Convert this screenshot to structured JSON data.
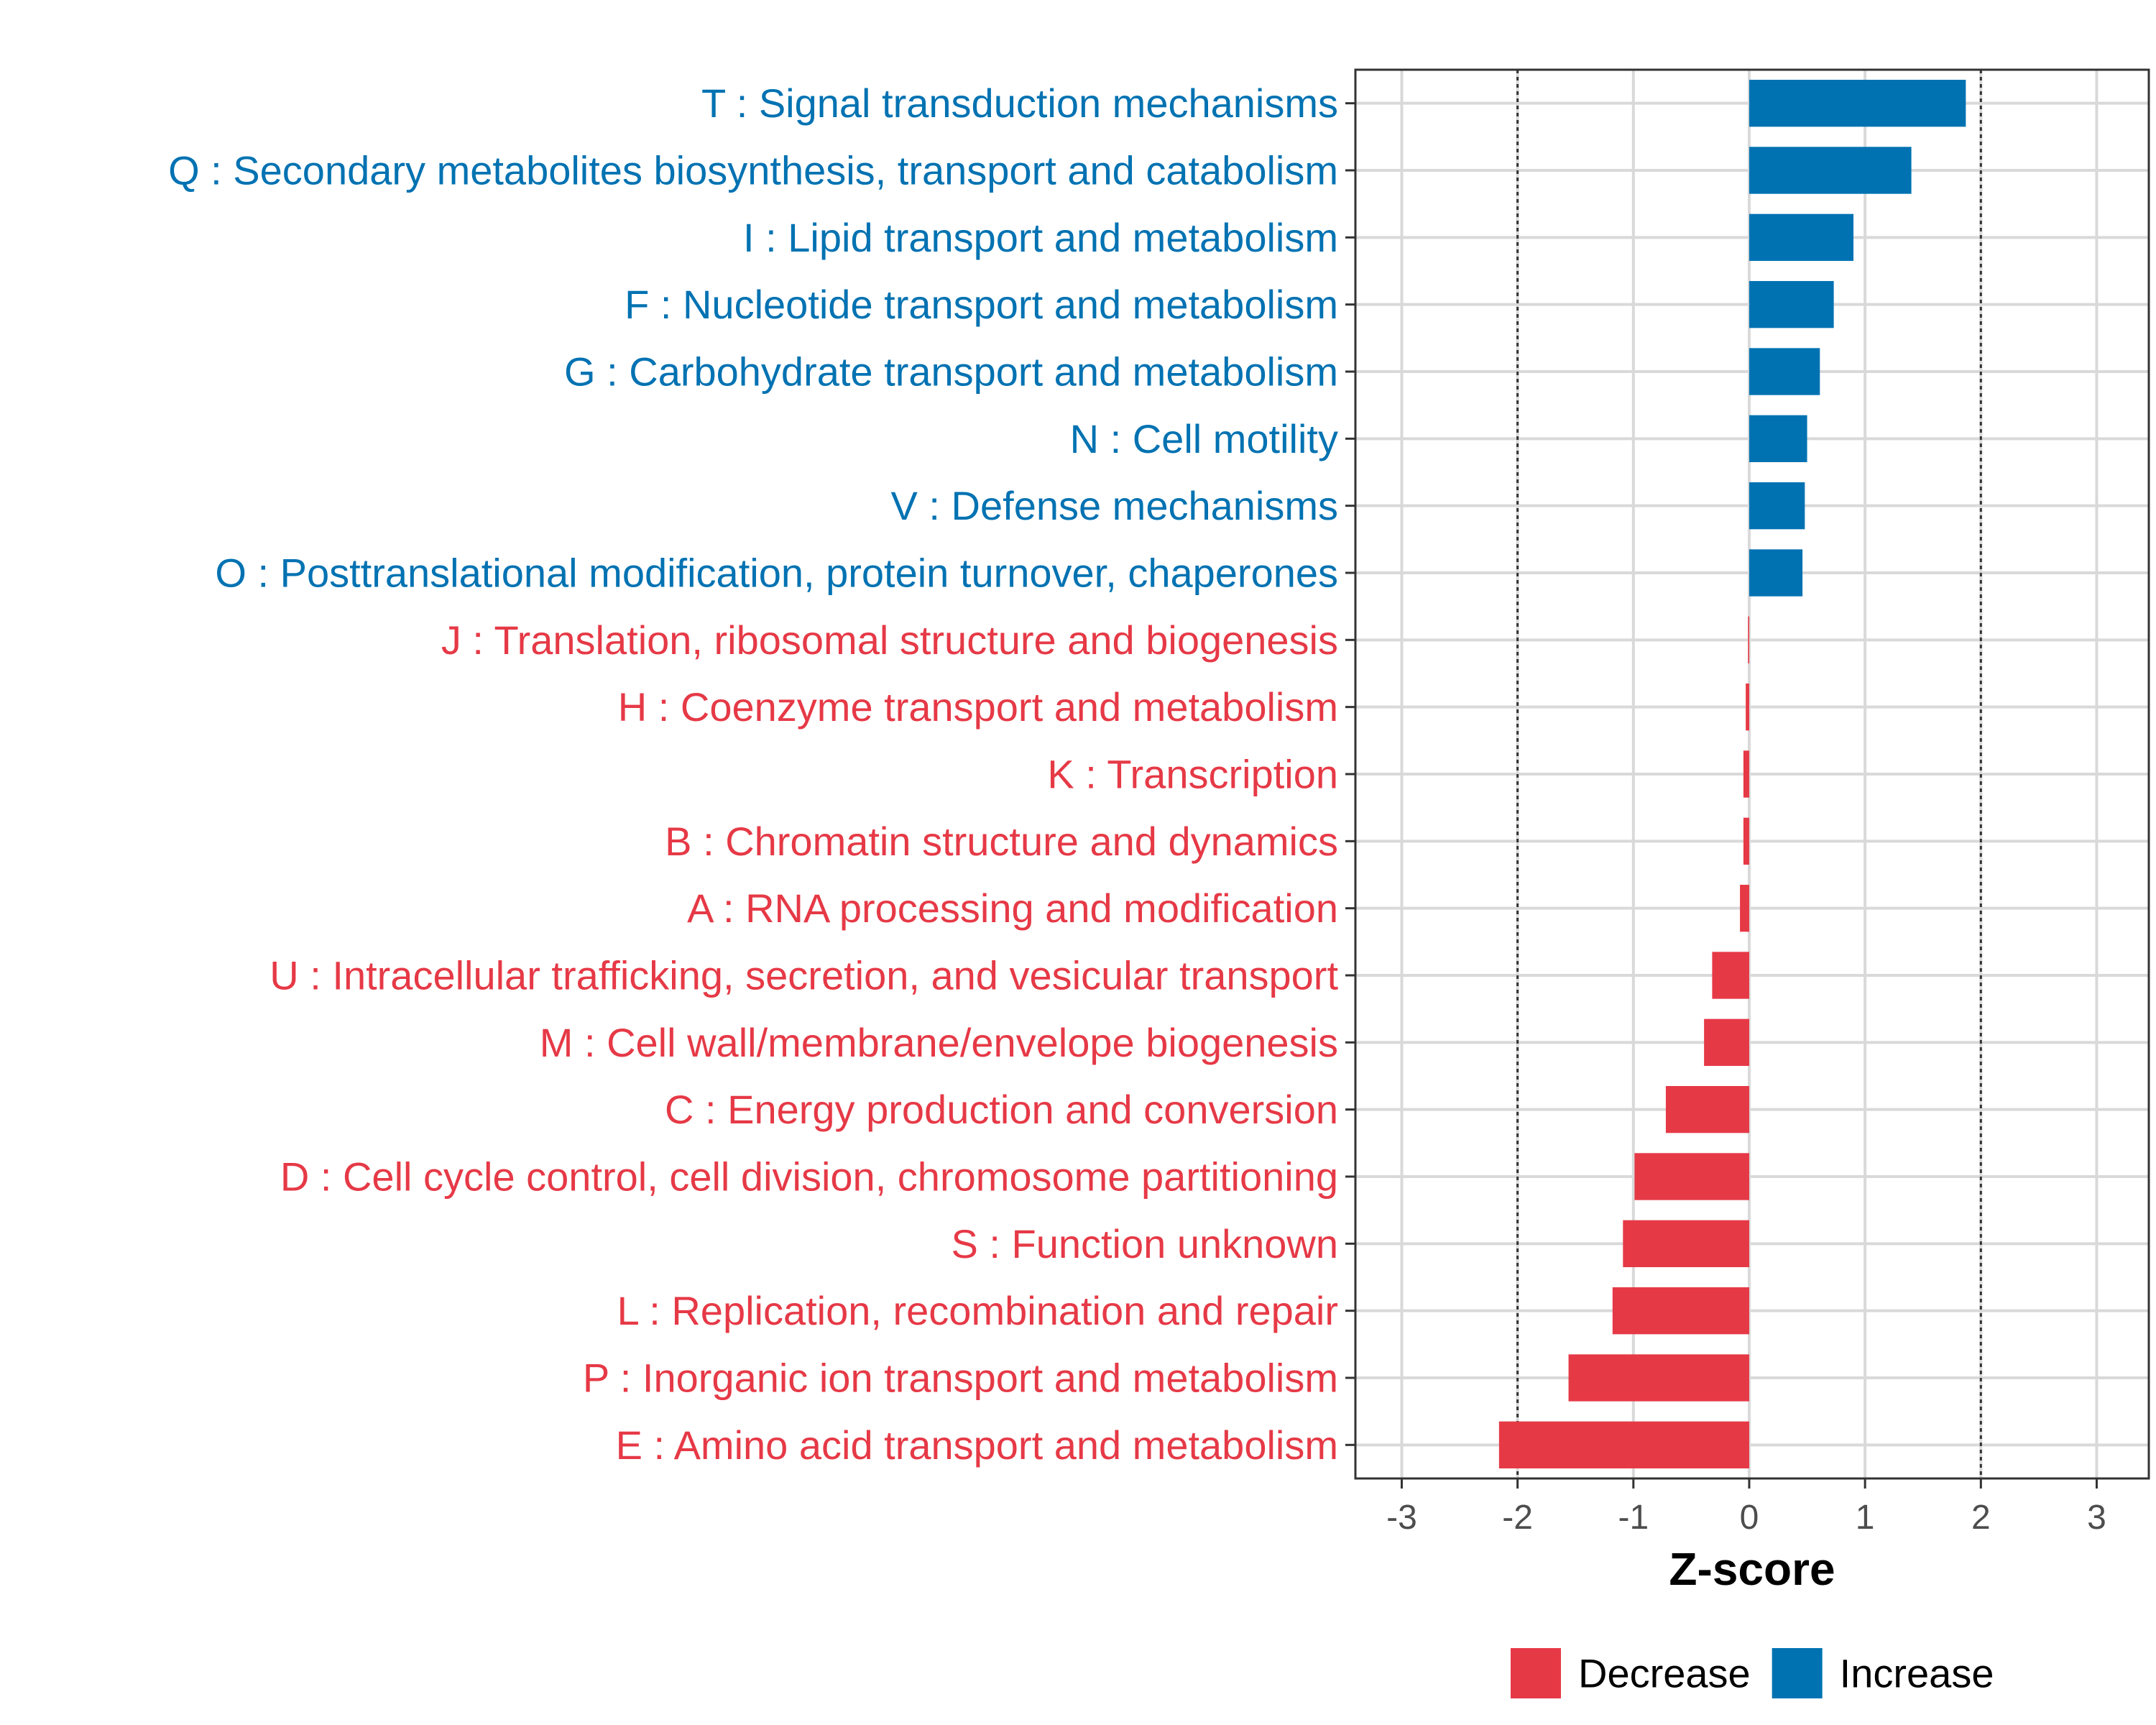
{
  "chart_data": {
    "type": "bar",
    "orientation": "horizontal",
    "xlabel": "Z-score",
    "xlim": [
      -3.4,
      3.45
    ],
    "xticks": [
      -3,
      -2,
      -1,
      0,
      1,
      2,
      3
    ],
    "tick_labels": [
      "-3",
      "-2",
      "-1",
      "0",
      "1",
      "2",
      "3"
    ],
    "reference_lines": [
      -2,
      2
    ],
    "grid": true,
    "categories": [
      "T : Signal transduction mechanisms",
      "Q : Secondary metabolites biosynthesis, transport and catabolism",
      "I : Lipid transport and metabolism",
      "F : Nucleotide transport and metabolism",
      "G : Carbohydrate transport and metabolism",
      "N : Cell motility",
      "V : Defense mechanisms",
      "O : Posttranslational modification, protein turnover, chaperones",
      "J : Translation, ribosomal structure and biogenesis",
      "H : Coenzyme transport and metabolism",
      "K : Transcription",
      "B : Chromatin structure and dynamics",
      "A : RNA processing and modification",
      "U : Intracellular trafficking, secretion, and vesicular transport",
      "M : Cell wall/membrane/envelope biogenesis",
      "C : Energy production and conversion",
      "D : Cell cycle control, cell division, chromosome partitioning",
      "S : Function unknown",
      "L : Replication, recombination and repair",
      "P : Inorganic ion transport and metabolism",
      "E : Amino acid transport and metabolism"
    ],
    "values": [
      1.87,
      1.4,
      0.9,
      0.73,
      0.61,
      0.5,
      0.48,
      0.46,
      -0.01,
      -0.03,
      -0.05,
      -0.05,
      -0.08,
      -0.32,
      -0.39,
      -0.72,
      -0.99,
      -1.09,
      -1.18,
      -1.56,
      -2.16
    ],
    "groups": [
      "Increase",
      "Increase",
      "Increase",
      "Increase",
      "Increase",
      "Increase",
      "Increase",
      "Increase",
      "Decrease",
      "Decrease",
      "Decrease",
      "Decrease",
      "Decrease",
      "Decrease",
      "Decrease",
      "Decrease",
      "Decrease",
      "Decrease",
      "Decrease",
      "Decrease",
      "Decrease"
    ],
    "legend": {
      "position": "bottom-right",
      "items": [
        {
          "label": "Decrease",
          "color": "#E63946"
        },
        {
          "label": "Increase",
          "color": "#0072B2"
        }
      ]
    },
    "colors": {
      "Increase": "#0072B2",
      "Decrease": "#E63946"
    }
  }
}
